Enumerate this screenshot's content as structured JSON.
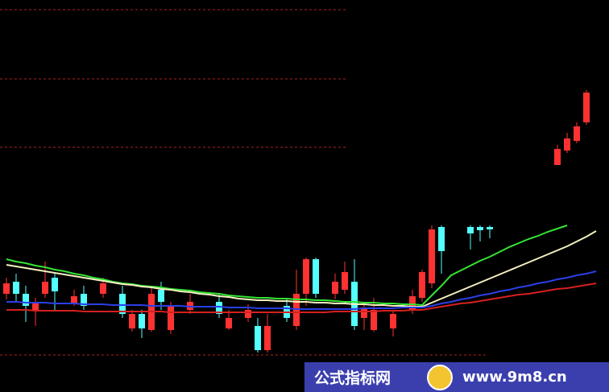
{
  "chart_data": {
    "type": "candlestick",
    "categories": [
      null,
      null,
      null,
      null,
      null,
      null,
      null,
      null,
      null,
      null,
      null,
      null,
      null,
      null,
      null,
      null,
      null,
      null,
      null,
      null,
      null,
      null,
      null,
      null,
      null,
      null,
      null,
      null,
      null,
      null,
      null,
      null,
      null,
      null,
      null,
      null,
      null,
      null,
      null,
      null,
      null,
      null,
      null,
      null,
      null,
      null,
      null,
      null,
      null,
      null,
      null,
      null,
      null,
      null,
      null,
      null,
      null,
      null,
      null,
      null,
      null,
      null
    ],
    "open": [
      122,
      137,
      122,
      102,
      122,
      142,
      null,
      109,
      122,
      null,
      122,
      null,
      122,
      79,
      97,
      77,
      127,
      77,
      null,
      102,
      null,
      null,
      112,
      79,
      null,
      92,
      82,
      52,
      null,
      107,
      82,
      122,
      165,
      null,
      122,
      127,
      137,
      92,
      77,
      null,
      79,
      null,
      102,
      117,
      135,
      205,
      null,
      null,
      205,
      205,
      205,
      null,
      null,
      null,
      null,
      null,
      null,
      282,
      300,
      312,
      335,
      null
    ],
    "high": [
      142,
      147,
      132,
      117,
      162,
      149,
      null,
      127,
      132,
      null,
      142,
      null,
      132,
      102,
      102,
      132,
      137,
      112,
      null,
      122,
      null,
      null,
      122,
      102,
      null,
      109,
      92,
      97,
      null,
      117,
      152,
      167,
      167,
      null,
      147,
      162,
      165,
      112,
      117,
      null,
      102,
      null,
      127,
      152,
      207,
      207,
      null,
      null,
      207,
      207,
      207,
      null,
      null,
      null,
      null,
      null,
      null,
      307,
      322,
      335,
      375,
      null
    ],
    "low": [
      115,
      112,
      87,
      82,
      117,
      102,
      null,
      107,
      102,
      null,
      117,
      null,
      92,
      75,
      67,
      75,
      102,
      72,
      null,
      97,
      null,
      null,
      92,
      77,
      null,
      87,
      49,
      49,
      null,
      87,
      77,
      107,
      117,
      null,
      115,
      122,
      77,
      77,
      75,
      null,
      69,
      null,
      97,
      112,
      129,
      147,
      null,
      null,
      177,
      187,
      191,
      null,
      null,
      null,
      null,
      null,
      null,
      282,
      297,
      309,
      332,
      null
    ],
    "close": [
      135,
      122,
      107,
      112,
      137,
      125,
      null,
      119,
      107,
      null,
      135,
      null,
      97,
      97,
      79,
      122,
      112,
      107,
      null,
      112,
      null,
      null,
      97,
      92,
      null,
      102,
      52,
      82,
      null,
      92,
      122,
      165,
      122,
      null,
      137,
      149,
      82,
      105,
      102,
      null,
      97,
      null,
      119,
      149,
      202,
      175,
      null,
      null,
      197,
      201,
      202,
      null,
      null,
      null,
      null,
      null,
      null,
      302,
      315,
      330,
      372,
      null
    ],
    "up_color": "#ff3232",
    "down_color": "#54ffff",
    "series": [
      {
        "color": "#33e633",
        "values": [
          165,
          162,
          160,
          157,
          155,
          152,
          150,
          147,
          145,
          142,
          140,
          137,
          135,
          134,
          132,
          131,
          130,
          128,
          127,
          126,
          124,
          123,
          122,
          120,
          119,
          118,
          117,
          117,
          116,
          116,
          115,
          115,
          114,
          114,
          113,
          112,
          112,
          111,
          111,
          110,
          110,
          109,
          109,
          108,
          120,
          132,
          145,
          151,
          157,
          163,
          168,
          174,
          180,
          185,
          190,
          194,
          199,
          203,
          207,
          null,
          null,
          null
        ]
      },
      {
        "color": "#f5f0c0",
        "values": [
          158,
          156,
          154,
          152,
          150,
          148,
          146,
          144,
          142,
          140,
          138,
          136,
          134,
          133,
          131,
          130,
          128,
          127,
          125,
          124,
          122,
          121,
          119,
          118,
          116,
          115,
          114,
          114,
          113,
          113,
          112,
          112,
          111,
          111,
          110,
          110,
          109,
          109,
          108,
          108,
          107,
          107,
          106,
          106,
          111,
          116,
          121,
          126,
          131,
          136,
          141,
          146,
          151,
          156,
          161,
          166,
          171,
          176,
          181,
          187,
          193,
          200
        ]
      },
      {
        "color": "#2b3fe6",
        "values": [
          112,
          112,
          111,
          111,
          111,
          110,
          110,
          110,
          109,
          109,
          109,
          108,
          108,
          108,
          108,
          107,
          107,
          107,
          107,
          106,
          106,
          106,
          106,
          105,
          105,
          105,
          104,
          104,
          104,
          104,
          103,
          103,
          103,
          103,
          103,
          103,
          103,
          104,
          104,
          104,
          104,
          105,
          105,
          105,
          107,
          110,
          112,
          115,
          117,
          120,
          122,
          125,
          127,
          130,
          132,
          135,
          137,
          140,
          142,
          145,
          147,
          150
        ]
      },
      {
        "color": "#d62020",
        "values": [
          102,
          102,
          102,
          101,
          101,
          101,
          101,
          101,
          100,
          100,
          100,
          100,
          100,
          100,
          100,
          100,
          100,
          99,
          99,
          99,
          99,
          99,
          99,
          99,
          99,
          99,
          99,
          99,
          99,
          99,
          99,
          99,
          99,
          99,
          100,
          100,
          100,
          100,
          100,
          101,
          101,
          101,
          102,
          102,
          104,
          106,
          108,
          110,
          111,
          113,
          115,
          117,
          119,
          121,
          122,
          124,
          126,
          128,
          129,
          131,
          133,
          135
        ]
      }
    ],
    "ylim": [
      0,
      487
    ],
    "gridlines": [
      475,
      389,
      304,
      46
    ],
    "grid_color": "#b02020"
  },
  "watermark": {
    "left": "公式指标网",
    "right": "www.9m8.cn"
  }
}
